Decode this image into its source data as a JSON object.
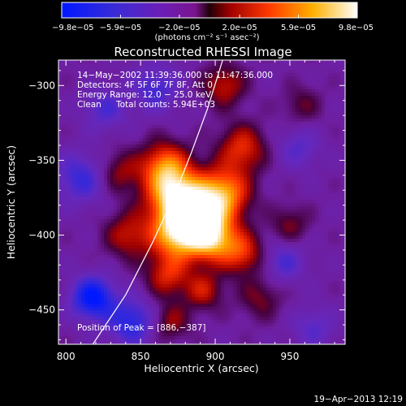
{
  "chart_data": {
    "type": "heatmap",
    "title": "Reconstructed RHESSI Image",
    "xlabel": "Heliocentric X (arcsec)",
    "ylabel": "Heliocentric Y (arcsec)",
    "xlim": [
      795,
      987
    ],
    "ylim": [
      -473,
      -283
    ],
    "xticks": [
      800,
      850,
      900,
      950
    ],
    "xtick_labels": [
      "800",
      "850",
      "900",
      "950"
    ],
    "yticks": [
      -300,
      -350,
      -400,
      -450
    ],
    "ytick_labels": [
      "−300",
      "−350",
      "−400",
      "−450"
    ],
    "colorbar": {
      "min": -9.8e-05,
      "max": 9.8e-05,
      "ticks": [
        -9.8e-05,
        -5.9e-05,
        -2e-05,
        2e-05,
        5.9e-05,
        9.8e-05
      ],
      "tick_labels": [
        "−9.8e−05",
        "−5.9e−05",
        "−2.0e−05",
        "2.0e−05",
        "5.9e−05",
        "9.8e−05"
      ],
      "unit_label": "(photons cm⁻² s⁻¹ asec⁻²)"
    },
    "annotations": {
      "time_range": "14−May−2002 11:39:36.000 to 11:47:36.000",
      "detectors": "Detectors: 4F 5F 6F 7F 8F, Att 0",
      "energy": "Energy Range: 12.0 − 25.0 keV",
      "clean": "Clean",
      "total_counts": "Total counts: 5.94E+03",
      "peak": "Position of Peak = [886,−387]"
    },
    "peak": [
      886,
      -387
    ],
    "limb_curve": [
      [
        818,
        -473
      ],
      [
        840,
        -440
      ],
      [
        858,
        -405
      ],
      [
        872,
        -375
      ],
      [
        884,
        -345
      ],
      [
        895,
        -315
      ],
      [
        905,
        -283
      ]
    ],
    "sources": [
      {
        "x": 886,
        "y": -387,
        "amp": 1.0,
        "r": 14
      },
      {
        "x": 872,
        "y": -372,
        "amp": 0.85,
        "r": 13
      },
      {
        "x": 906,
        "y": -372,
        "amp": 0.8,
        "r": 12
      },
      {
        "x": 898,
        "y": -402,
        "amp": 0.8,
        "r": 11
      },
      {
        "x": 874,
        "y": -400,
        "amp": 0.75,
        "r": 12
      },
      {
        "x": 866,
        "y": -353,
        "amp": 0.65,
        "r": 11
      },
      {
        "x": 918,
        "y": -342,
        "amp": 0.55,
        "r": 11
      },
      {
        "x": 918,
        "y": -412,
        "amp": 0.55,
        "r": 10
      },
      {
        "x": 906,
        "y": -300,
        "amp": 0.45,
        "r": 10
      },
      {
        "x": 842,
        "y": -400,
        "amp": 0.45,
        "r": 11
      },
      {
        "x": 836,
        "y": -358,
        "amp": 0.35,
        "r": 10
      },
      {
        "x": 868,
        "y": -427,
        "amp": 0.5,
        "r": 10
      },
      {
        "x": 892,
        "y": -437,
        "amp": 0.45,
        "r": 9
      },
      {
        "x": 930,
        "y": -442,
        "amp": 0.3,
        "r": 10
      },
      {
        "x": 870,
        "y": -458,
        "amp": 0.35,
        "r": 9
      },
      {
        "x": 950,
        "y": -393,
        "amp": 0.3,
        "r": 9
      },
      {
        "x": 958,
        "y": -313,
        "amp": 0.25,
        "r": 9
      },
      {
        "x": 844,
        "y": -458,
        "amp": -0.55,
        "r": 11
      },
      {
        "x": 818,
        "y": -442,
        "amp": -0.8,
        "r": 10
      },
      {
        "x": 810,
        "y": -362,
        "amp": -0.45,
        "r": 12
      },
      {
        "x": 860,
        "y": -302,
        "amp": -0.4,
        "r": 11
      },
      {
        "x": 956,
        "y": -342,
        "amp": -0.3,
        "r": 10
      },
      {
        "x": 946,
        "y": -418,
        "amp": -0.35,
        "r": 10
      },
      {
        "x": 966,
        "y": -462,
        "amp": -0.3,
        "r": 10
      },
      {
        "x": 826,
        "y": -316,
        "amp": -0.35,
        "r": 10
      }
    ]
  },
  "footer": {
    "date_stamp": "19−Apr−2013 12:19"
  }
}
